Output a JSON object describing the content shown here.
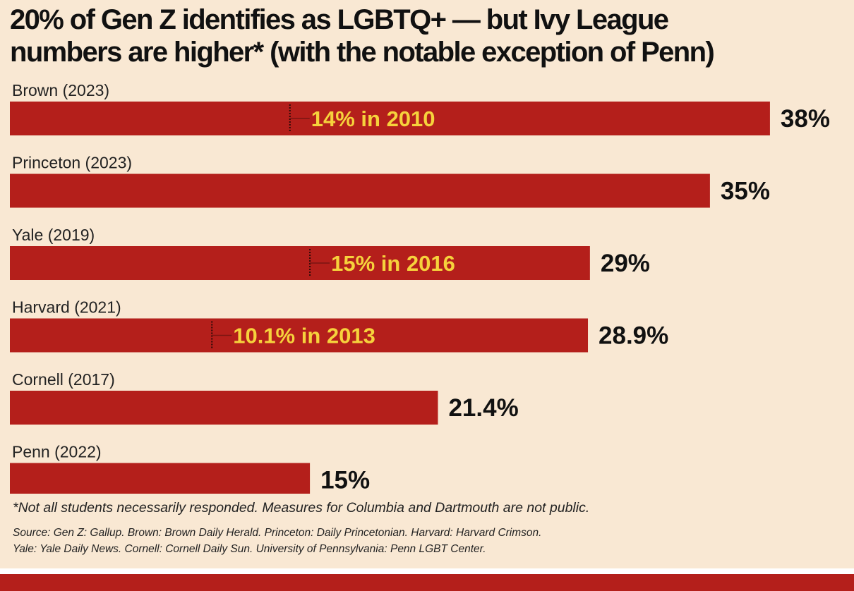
{
  "colors": {
    "background": "#f9e8d3",
    "bar": "#b41f1b",
    "annotation": "#f6d23c",
    "text": "#111111",
    "strip": "#b41f1b"
  },
  "title_lines": [
    "20% of Gen Z identifies as LGBTQ+ — but Ivy League",
    "numbers are higher* (with the notable exception of Penn)"
  ],
  "chart_data": {
    "type": "bar",
    "orientation": "horizontal",
    "categories": [
      "Brown (2023)",
      "Princeton (2023)",
      "Yale (2019)",
      "Harvard (2021)",
      "Cornell (2017)",
      "Penn (2022)"
    ],
    "values": [
      38,
      35,
      29,
      28.9,
      21.4,
      15
    ],
    "value_labels": [
      "38%",
      "35%",
      "29%",
      "28.9%",
      "21.4%",
      "15%"
    ],
    "earlier_markers": [
      {
        "category": "Brown (2023)",
        "value": 14,
        "label": "14% in 2010"
      },
      {
        "category": "Yale (2019)",
        "value": 15,
        "label": "15% in 2016"
      },
      {
        "category": "Harvard (2021)",
        "value": 10.1,
        "label": "10.1% in 2013"
      }
    ],
    "xlim": [
      0,
      38
    ],
    "grid": false,
    "title": "20% of Gen Z identifies as LGBTQ+ — but Ivy League numbers are higher* (with the notable exception of Penn)"
  },
  "footnote": "*Not all students necessarily responded. Measures for Columbia and Dartmouth are not public.",
  "source_lines": [
    "Source: Gen Z: Gallup. Brown: Brown Daily Herald. Princeton: Daily Princetonian. Harvard: Harvard Crimson.",
    "Yale: Yale Daily News. Cornell: Cornell Daily Sun. University of Pennsylvania: Penn LGBT Center."
  ]
}
